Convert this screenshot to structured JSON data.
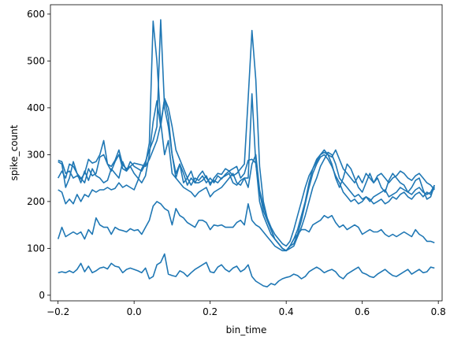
{
  "chart_data": {
    "type": "line",
    "xlabel": "bin_time",
    "ylabel": "spike_count",
    "xlim": [
      -0.22,
      0.81
    ],
    "ylim": [
      -12,
      620
    ],
    "xticks": [
      -0.2,
      0.0,
      0.2,
      0.4,
      0.6,
      0.8
    ],
    "xtick_labels": [
      "−0.2",
      "0.0",
      "0.2",
      "0.4",
      "0.6",
      "0.8"
    ],
    "yticks": [
      0,
      100,
      200,
      300,
      400,
      500,
      600
    ],
    "ytick_labels": [
      "0",
      "100",
      "200",
      "300",
      "400",
      "500",
      "600"
    ],
    "grid": false,
    "color": "#1f77b4",
    "x": [
      -0.2,
      -0.19,
      -0.18,
      -0.17,
      -0.16,
      -0.15,
      -0.14,
      -0.13,
      -0.12,
      -0.11,
      -0.1,
      -0.09,
      -0.08,
      -0.07,
      -0.06,
      -0.05,
      -0.04,
      -0.03,
      -0.02,
      -0.01,
      0.0,
      0.01,
      0.02,
      0.03,
      0.04,
      0.05,
      0.06,
      0.07,
      0.08,
      0.09,
      0.1,
      0.11,
      0.12,
      0.13,
      0.14,
      0.15,
      0.16,
      0.17,
      0.18,
      0.19,
      0.2,
      0.21,
      0.22,
      0.23,
      0.24,
      0.25,
      0.26,
      0.27,
      0.28,
      0.29,
      0.3,
      0.31,
      0.32,
      0.33,
      0.34,
      0.35,
      0.36,
      0.37,
      0.38,
      0.39,
      0.4,
      0.41,
      0.42,
      0.43,
      0.44,
      0.45,
      0.46,
      0.47,
      0.48,
      0.49,
      0.5,
      0.51,
      0.52,
      0.53,
      0.54,
      0.55,
      0.56,
      0.57,
      0.58,
      0.59,
      0.6,
      0.61,
      0.62,
      0.63,
      0.64,
      0.65,
      0.66,
      0.67,
      0.68,
      0.69,
      0.7,
      0.71,
      0.72,
      0.73,
      0.74,
      0.75,
      0.76,
      0.77,
      0.78,
      0.79
    ],
    "series": [
      {
        "values": [
          288,
          285,
          260,
          265,
          250,
          255,
          248,
          260,
          290,
          282,
          285,
          300,
          330,
          280,
          275,
          288,
          310,
          278,
          270,
          275,
          282,
          280,
          278,
          275,
          290,
          310,
          330,
          365,
          420,
          380,
          300,
          260,
          280,
          240,
          250,
          235,
          250,
          245,
          255,
          240,
          250,
          240,
          255,
          248,
          258,
          265,
          270,
          275,
          250,
          260,
          288,
          290,
          282,
          200,
          170,
          150,
          130,
          120,
          110,
          100,
          95,
          100,
          105,
          125,
          145,
          170,
          200,
          230,
          250,
          275,
          290,
          305,
          300,
          280,
          250,
          240,
          230,
          220,
          210,
          215,
          205,
          210,
          200,
          210,
          215,
          220,
          225,
          210,
          215,
          220,
          230,
          225,
          220,
          215,
          225,
          230,
          220,
          215,
          220,
          235
        ]
      },
      {
        "values": [
          285,
          280,
          230,
          250,
          285,
          260,
          250,
          240,
          270,
          255,
          260,
          295,
          300,
          280,
          265,
          285,
          300,
          270,
          265,
          285,
          275,
          270,
          265,
          280,
          325,
          585,
          500,
          370,
          300,
          330,
          260,
          250,
          280,
          260,
          235,
          250,
          240,
          240,
          245,
          255,
          235,
          250,
          260,
          258,
          270,
          265,
          255,
          260,
          270,
          280,
          420,
          565,
          460,
          275,
          200,
          165,
          140,
          120,
          110,
          100,
          95,
          105,
          110,
          130,
          160,
          195,
          230,
          260,
          280,
          295,
          300,
          290,
          275,
          255,
          240,
          220,
          210,
          200,
          205,
          195,
          200,
          210,
          205,
          195,
          200,
          205,
          195,
          200,
          210,
          205,
          215,
          220,
          210,
          205,
          215,
          220,
          210,
          220,
          215,
          230
        ]
      },
      {
        "values": [
          250,
          265,
          250,
          280,
          275,
          260,
          240,
          265,
          245,
          270,
          255,
          250,
          240,
          245,
          270,
          260,
          250,
          285,
          265,
          275,
          260,
          250,
          240,
          255,
          300,
          370,
          415,
          360,
          420,
          400,
          360,
          310,
          290,
          270,
          250,
          265,
          240,
          255,
          265,
          250,
          240,
          245,
          240,
          250,
          255,
          260,
          240,
          235,
          245,
          250,
          230,
          280,
          300,
          225,
          190,
          165,
          145,
          130,
          120,
          110,
          105,
          115,
          140,
          170,
          200,
          230,
          255,
          270,
          285,
          300,
          305,
          300,
          295,
          310,
          290,
          270,
          260,
          250,
          240,
          255,
          240,
          260,
          250,
          240,
          255,
          260,
          250,
          240,
          250,
          255,
          265,
          260,
          250,
          245,
          255,
          260,
          250,
          240,
          235,
          225
        ]
      },
      {
        "values": [
          225,
          220,
          195,
          205,
          195,
          215,
          200,
          215,
          210,
          225,
          220,
          225,
          225,
          230,
          225,
          228,
          240,
          230,
          235,
          230,
          225,
          245,
          270,
          285,
          310,
          330,
          360,
          588,
          400,
          360,
          300,
          250,
          240,
          230,
          225,
          220,
          210,
          220,
          225,
          230,
          210,
          220,
          225,
          230,
          240,
          250,
          260,
          240,
          235,
          250,
          250,
          430,
          280,
          220,
          180,
          160,
          140,
          120,
          110,
          100,
          95,
          105,
          120,
          140,
          170,
          200,
          240,
          270,
          290,
          300,
          310,
          300,
          280,
          250,
          230,
          250,
          280,
          270,
          250,
          230,
          220,
          240,
          260,
          240,
          250,
          230,
          220,
          245,
          260,
          250,
          240,
          235,
          220,
          230,
          245,
          250,
          225,
          205,
          210,
          235
        ]
      },
      {
        "values": [
          120,
          145,
          125,
          130,
          135,
          130,
          135,
          120,
          140,
          130,
          165,
          150,
          145,
          145,
          130,
          145,
          140,
          138,
          135,
          142,
          138,
          140,
          130,
          145,
          160,
          190,
          200,
          195,
          185,
          180,
          150,
          185,
          170,
          165,
          155,
          150,
          145,
          160,
          160,
          155,
          140,
          150,
          148,
          150,
          145,
          145,
          145,
          155,
          160,
          150,
          195,
          160,
          150,
          145,
          135,
          125,
          115,
          105,
          100,
          95,
          95,
          105,
          120,
          130,
          140,
          140,
          135,
          150,
          155,
          160,
          170,
          165,
          170,
          155,
          145,
          150,
          140,
          145,
          150,
          145,
          130,
          135,
          140,
          135,
          135,
          140,
          130,
          125,
          130,
          125,
          130,
          135,
          130,
          125,
          140,
          130,
          125,
          115,
          115,
          112
        ]
      },
      {
        "values": [
          48,
          50,
          48,
          52,
          48,
          55,
          68,
          50,
          62,
          48,
          52,
          58,
          60,
          56,
          68,
          62,
          60,
          48,
          55,
          58,
          55,
          52,
          48,
          58,
          35,
          40,
          65,
          70,
          88,
          45,
          42,
          40,
          52,
          48,
          40,
          48,
          55,
          60,
          65,
          70,
          50,
          48,
          60,
          65,
          55,
          50,
          58,
          62,
          50,
          55,
          65,
          40,
          30,
          25,
          20,
          18,
          25,
          22,
          30,
          35,
          38,
          40,
          45,
          42,
          35,
          40,
          50,
          55,
          60,
          55,
          48,
          52,
          55,
          50,
          40,
          35,
          45,
          50,
          55,
          60,
          48,
          45,
          40,
          38,
          45,
          50,
          55,
          48,
          42,
          40,
          45,
          50,
          55,
          45,
          50,
          55,
          48,
          50,
          60,
          58
        ]
      }
    ]
  }
}
